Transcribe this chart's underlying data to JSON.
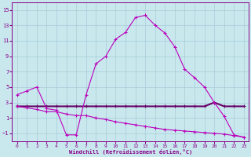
{
  "xlabel": "Windchill (Refroidissement éolien,°C)",
  "bg_color": "#c8e8ee",
  "grid_color": "#a8ccd8",
  "lc_bright": "#bb00bb",
  "lc_dark": "#660066",
  "xlim": [
    -0.5,
    23.5
  ],
  "ylim": [
    -2.0,
    16.0
  ],
  "xticks": [
    0,
    1,
    2,
    3,
    4,
    5,
    6,
    7,
    8,
    9,
    10,
    11,
    12,
    13,
    14,
    15,
    16,
    17,
    18,
    19,
    20,
    21,
    22,
    23
  ],
  "yticks": [
    -1,
    1,
    3,
    5,
    7,
    9,
    11,
    13,
    15
  ],
  "s1_x": [
    0,
    1,
    2,
    3,
    4,
    5,
    6,
    7,
    8,
    9,
    10,
    11,
    12,
    13,
    14,
    15,
    16,
    17,
    18,
    19,
    20,
    21,
    22,
    23
  ],
  "s1_y": [
    4.0,
    4.5,
    5.0,
    2.2,
    2.0,
    -1.2,
    -1.2,
    4.0,
    8.0,
    9.0,
    11.2,
    12.1,
    14.0,
    14.3,
    13.0,
    12.0,
    10.2,
    7.3,
    6.2,
    5.0,
    3.0,
    1.2,
    -1.2,
    -1.5
  ],
  "s2_x": [
    0,
    1,
    2,
    3,
    4,
    5,
    6,
    7,
    8,
    9,
    10,
    11,
    12,
    13,
    14,
    15,
    16,
    17,
    18,
    19,
    20,
    21,
    22,
    23
  ],
  "s2_y": [
    2.5,
    2.5,
    2.5,
    2.5,
    2.5,
    2.5,
    2.5,
    2.5,
    2.5,
    2.5,
    2.5,
    2.5,
    2.5,
    2.5,
    2.5,
    2.5,
    2.5,
    2.5,
    2.5,
    2.5,
    3.0,
    2.5,
    2.5,
    2.5
  ],
  "s3_x": [
    0,
    1,
    2,
    3,
    4,
    5,
    6,
    7,
    8,
    9,
    10,
    11,
    12,
    13,
    14,
    15,
    16,
    17,
    18,
    19,
    20,
    21,
    22,
    23
  ],
  "s3_y": [
    2.5,
    2.3,
    2.1,
    1.8,
    1.8,
    1.5,
    1.3,
    1.3,
    1.0,
    0.8,
    0.5,
    0.3,
    0.1,
    -0.1,
    -0.3,
    -0.5,
    -0.6,
    -0.7,
    -0.8,
    -0.9,
    -1.0,
    -1.1,
    -1.3,
    -1.5
  ]
}
